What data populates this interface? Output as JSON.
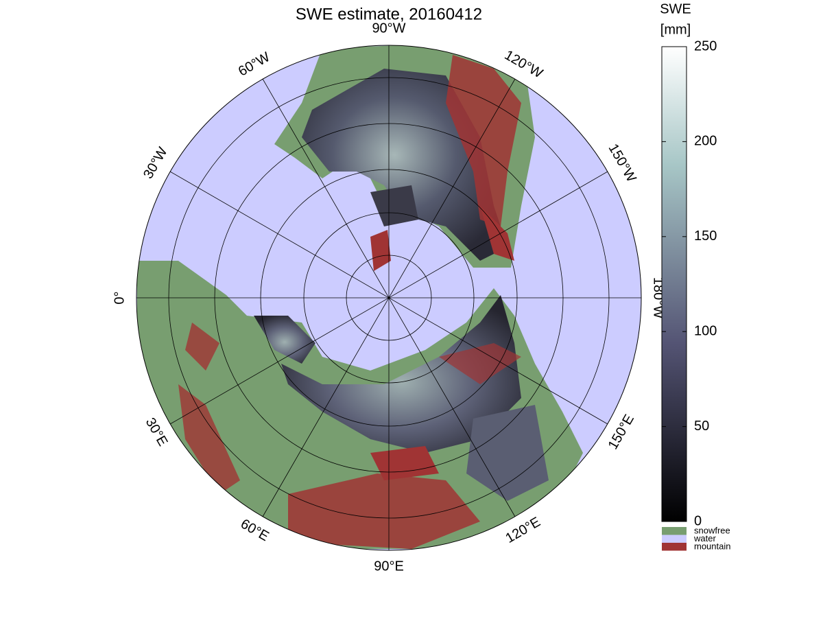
{
  "map": {
    "title": "SWE estimate, 20160412",
    "longitude_labels": [
      "90°W",
      "120°W",
      "150°W",
      "180°W",
      "150°E",
      "120°E",
      "90°E",
      "60°E",
      "30°E",
      "0°",
      "30°W",
      "60°W"
    ],
    "colorbar": {
      "title": [
        "SWE",
        "[mm]"
      ],
      "lim": [
        0,
        250
      ],
      "ticks": [
        0,
        50,
        100,
        150,
        200,
        250
      ]
    },
    "legend": [
      {
        "label": "snowfree",
        "color": "#789e70"
      },
      {
        "label": "water",
        "color": "#ccccff"
      },
      {
        "label": "mountain",
        "color": "#a03434"
      }
    ]
  }
}
